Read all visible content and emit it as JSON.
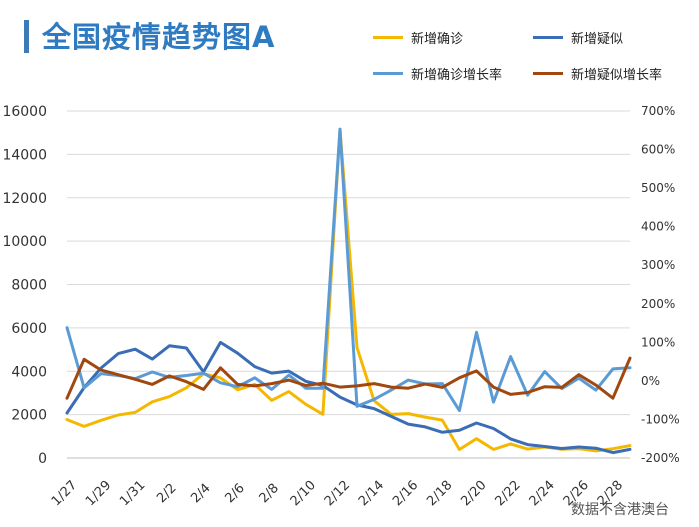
{
  "header": {
    "title": "全国疫情趋势图A"
  },
  "source_label": "数据不含港澳台",
  "chart_data": {
    "type": "line",
    "title": "全国疫情趋势图A",
    "x": [
      "1/27",
      "1/28",
      "1/29",
      "1/30",
      "1/31",
      "2/1",
      "2/2",
      "2/3",
      "2/4",
      "2/5",
      "2/6",
      "2/7",
      "2/8",
      "2/9",
      "2/10",
      "2/11",
      "2/12",
      "2/13",
      "2/14",
      "2/15",
      "2/16",
      "2/17",
      "2/18",
      "2/19",
      "2/20",
      "2/21",
      "2/22",
      "2/23",
      "2/24",
      "2/25",
      "2/26",
      "2/27",
      "2/28",
      "2/29"
    ],
    "x_tick_labels": [
      "1/27",
      "1/29",
      "1/31",
      "2/2",
      "2/4",
      "2/6",
      "2/8",
      "2/10",
      "2/12",
      "2/14",
      "2/16",
      "2/18",
      "2/20",
      "2/22",
      "2/24",
      "2/26",
      "2/28"
    ],
    "y_left": {
      "ylim": [
        0,
        16000
      ],
      "ticks": [
        "0",
        "2000",
        "4000",
        "6000",
        "8000",
        "10000",
        "12000",
        "14000",
        "16000"
      ]
    },
    "y_right": {
      "ylim": [
        -200,
        700
      ],
      "ticks": [
        "-200%",
        "-100%",
        "0%",
        "100%",
        "200%",
        "300%",
        "400%",
        "500%",
        "600%",
        "700%"
      ]
    },
    "legend_position": "top-right",
    "grid": "horizontal",
    "series": [
      {
        "name": "新增确诊",
        "axis": "left",
        "color": "#f5b800",
        "values": [
          1771,
          1459,
          1737,
          1982,
          2102,
          2590,
          2829,
          3235,
          3887,
          3694,
          3143,
          3399,
          2656,
          3062,
          2478,
          2015,
          15152,
          5090,
          2641,
          2009,
          2048,
          1886,
          1749,
          394,
          889,
          397,
          648,
          409,
          508,
          406,
          433,
          327,
          427,
          573
        ]
      },
      {
        "name": "新增疑似",
        "axis": "left",
        "color": "#3a6db5",
        "values": [
          2077,
          3248,
          4148,
          4812,
          5019,
          4562,
          5173,
          5072,
          3971,
          5328,
          4833,
          4214,
          3916,
          4008,
          3536,
          3342,
          2807,
          2450,
          2277,
          1918,
          1563,
          1432,
          1185,
          1277,
          1614,
          1361,
          882,
          620,
          530,
          439,
          508,
          452,
          248,
          395
        ]
      },
      {
        "name": "新增确诊增长率",
        "axis": "right",
        "color": "#5b9bd5",
        "values": [
          138,
          -18,
          19,
          14,
          6,
          23,
          9,
          14,
          20,
          -5,
          -15,
          8,
          -22,
          15,
          -19,
          -19,
          653,
          -66,
          -48,
          -24,
          2,
          -8,
          -7,
          -77,
          126,
          -55,
          63,
          -37,
          24,
          -20,
          7,
          -24,
          31,
          34
        ]
      },
      {
        "name": "新增疑似增长率",
        "axis": "right",
        "color": "#a0480f",
        "values": [
          -45,
          56,
          28,
          16,
          4,
          -9,
          13,
          -2,
          -22,
          34,
          -9,
          -13,
          -7,
          2,
          -12,
          -6,
          -16,
          -13,
          -7,
          -16,
          -19,
          -8,
          -17,
          8,
          26,
          -16,
          -35,
          -30,
          -15,
          -17,
          16,
          -11,
          -45,
          59
        ]
      }
    ]
  }
}
